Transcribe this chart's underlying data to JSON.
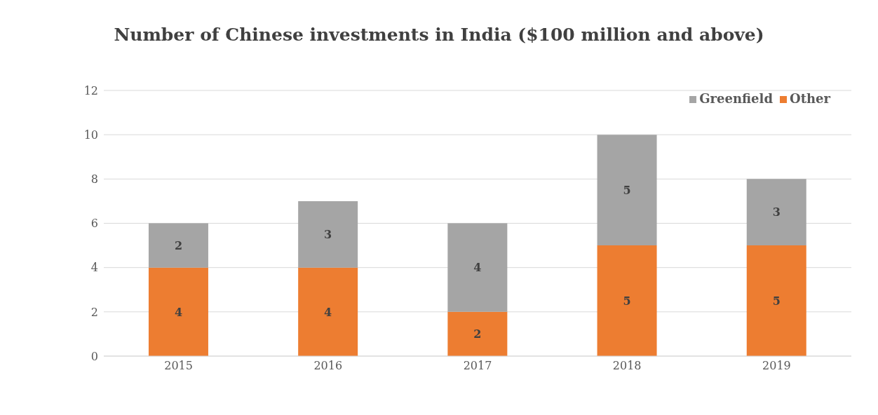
{
  "chart_data": {
    "type": "bar",
    "title": "Number of Chinese investments in India ($100 million and above)",
    "categories": [
      "2015",
      "2016",
      "2017",
      "2018",
      "2019"
    ],
    "series": [
      {
        "name": "Other",
        "color": "#ed7d31",
        "values": [
          4,
          4,
          2,
          5,
          5
        ]
      },
      {
        "name": "Greenfield",
        "color": "#a5a5a5",
        "values": [
          2,
          3,
          4,
          5,
          3
        ]
      }
    ],
    "stacked": true,
    "ylim": [
      0,
      12
    ],
    "yticks": [
      0,
      2,
      4,
      6,
      8,
      10,
      12
    ],
    "grid": "y",
    "legend": "top right",
    "data_labels": true
  }
}
